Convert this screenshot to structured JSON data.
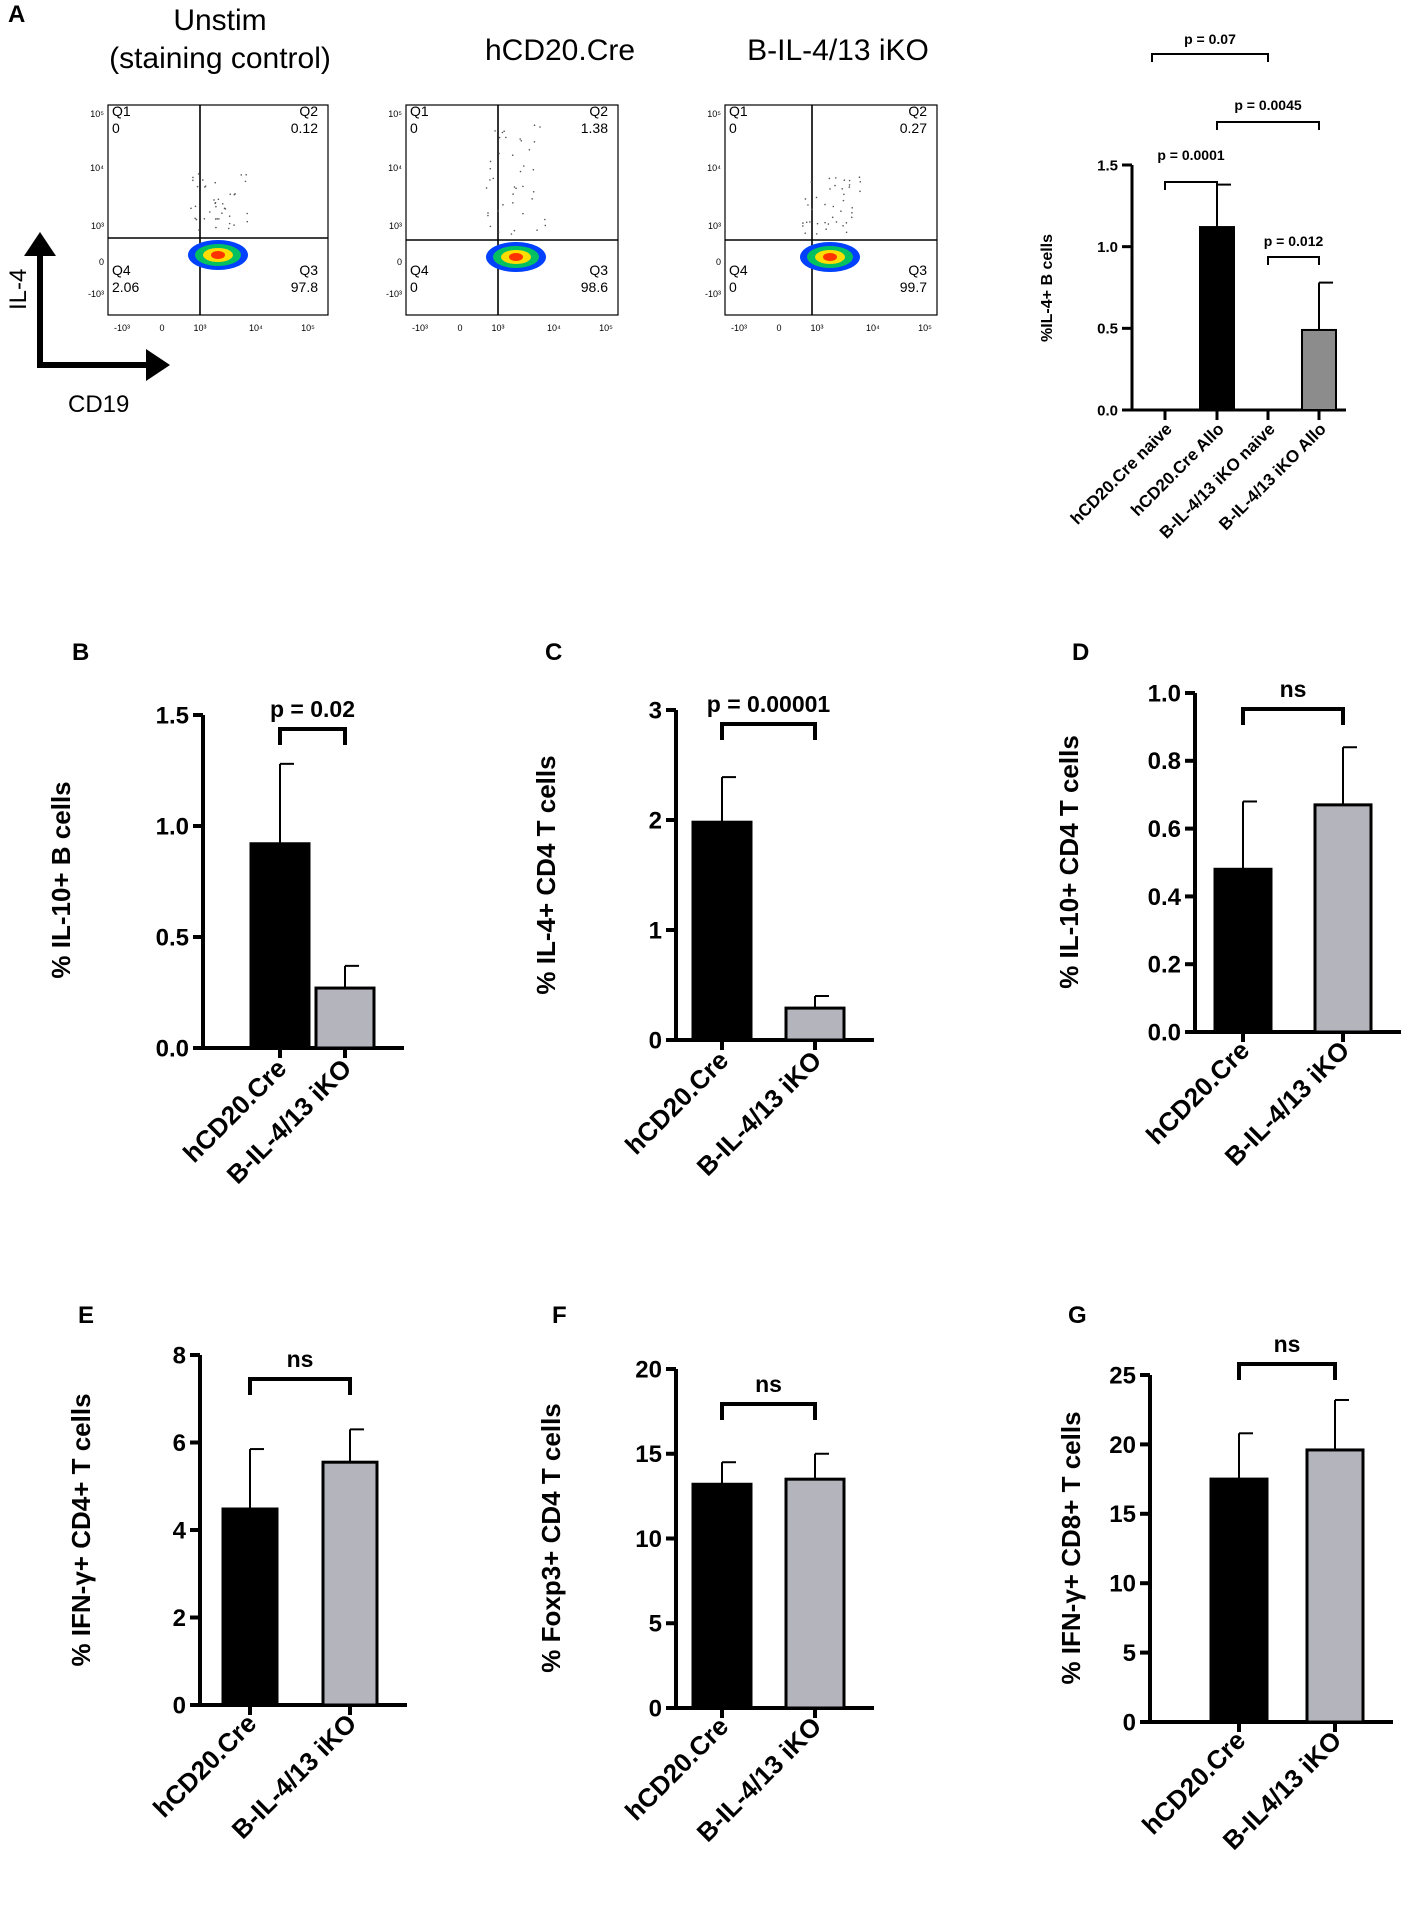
{
  "panel_letters": [
    "A",
    "B",
    "C",
    "D",
    "E",
    "F",
    "G"
  ],
  "flow_axes": {
    "x": "CD19",
    "y": "IL-4"
  },
  "flow_plots": [
    {
      "title_lines": [
        "Unstim",
        "(staining control)"
      ],
      "quadrants": {
        "q1": [
          "Q1",
          "0"
        ],
        "q2": [
          "Q2",
          "0.12"
        ],
        "q3": [
          "Q3",
          "97.8"
        ],
        "q4": [
          "Q4",
          "2.06"
        ]
      }
    },
    {
      "title_lines": [
        "hCD20.Cre"
      ],
      "quadrants": {
        "q1": [
          "Q1",
          "0"
        ],
        "q2": [
          "Q2",
          "1.38"
        ],
        "q3": [
          "Q3",
          "98.6"
        ],
        "q4": [
          "Q4",
          "0"
        ]
      }
    },
    {
      "title_lines": [
        "B-IL-4/13 iKO"
      ],
      "quadrants": {
        "q1": [
          "Q1",
          "0"
        ],
        "q2": [
          "Q2",
          "0.27"
        ],
        "q3": [
          "Q3",
          "99.7"
        ],
        "q4": [
          "Q4",
          "0"
        ]
      }
    }
  ],
  "flow_tick_labels": {
    "y": [
      "10⁵",
      "10⁴",
      "10³",
      "0",
      "-10³"
    ],
    "x": [
      "-10³",
      "0",
      "10³",
      "10⁴",
      "10⁵"
    ]
  },
  "colors": {
    "black_bar": "#000000",
    "grey_bar": "#b4b4bc",
    "grey_bar_a": "#8c8c8c",
    "scatter_hot": "#ff3300",
    "scatter_mid": "#ffdd00",
    "scatter_cool": "#00c060",
    "scatter_cold": "#0040ff"
  },
  "chart_data": [
    {
      "panel": "A",
      "type": "bar",
      "ylabel": "%IL-4+ B cells",
      "categories": [
        "hCD20.Cre naive",
        "hCD20.Cre Allo",
        "B-IL-4/13 iKO naive",
        "B-IL-4/13 iKO Allo"
      ],
      "values": [
        0,
        1.12,
        0,
        0.49
      ],
      "errors": [
        0,
        0.26,
        0,
        0.29
      ],
      "colors": [
        "black",
        "black",
        "grey",
        "grey"
      ],
      "ylim": [
        0,
        1.5
      ],
      "yticks": [
        "0.0",
        "0.5",
        "1.0",
        "1.5"
      ],
      "brackets": [
        {
          "from": 0,
          "to": 1,
          "label": "p = 0.0001"
        },
        {
          "from": 2,
          "to": 3,
          "label": "p = 0.012"
        },
        {
          "from": 1,
          "to": 3,
          "label": "p = 0.0045"
        },
        {
          "from": 0,
          "to": 2,
          "label": "p = 0.07"
        }
      ]
    },
    {
      "panel": "B",
      "type": "bar",
      "ylabel": "% IL-10+ B cells",
      "categories": [
        "hCD20.Cre",
        "B-IL-4/13 iKO"
      ],
      "values": [
        0.92,
        0.27
      ],
      "errors": [
        0.36,
        0.1
      ],
      "ylim": [
        0,
        1.5
      ],
      "yticks": [
        "0.0",
        "0.5",
        "1.0",
        "1.5"
      ],
      "bracket": "p = 0.02"
    },
    {
      "panel": "C",
      "type": "bar",
      "ylabel": "% IL-4+ CD4 T cells",
      "categories": [
        "hCD20.Cre",
        "B-IL-4/13 iKO"
      ],
      "values": [
        1.98,
        0.29
      ],
      "errors": [
        0.41,
        0.11
      ],
      "ylim": [
        0,
        3
      ],
      "yticks": [
        "0",
        "1",
        "2",
        "3"
      ],
      "bracket": "p = 0.00001"
    },
    {
      "panel": "D",
      "type": "bar",
      "ylabel": "% IL-10+ CD4 T cells",
      "categories": [
        "hCD20.Cre",
        "B-IL-4/13 iKO"
      ],
      "values": [
        0.48,
        0.67
      ],
      "errors": [
        0.2,
        0.17
      ],
      "ylim": [
        0,
        1.0
      ],
      "yticks": [
        "0.0",
        "0.2",
        "0.4",
        "0.6",
        "0.8",
        "1.0"
      ],
      "bracket": "ns"
    },
    {
      "panel": "E",
      "type": "bar",
      "ylabel": "% IFN-γ+ CD4+ T cells",
      "categories": [
        "hCD20.Cre",
        "B-IL-4/13 iKO"
      ],
      "values": [
        4.48,
        5.55
      ],
      "errors": [
        1.37,
        0.75
      ],
      "ylim": [
        0,
        8
      ],
      "yticks": [
        "0",
        "2",
        "4",
        "6",
        "8"
      ],
      "bracket": "ns"
    },
    {
      "panel": "F",
      "type": "bar",
      "ylabel": "% Foxp3+ CD4 T cells",
      "categories": [
        "hCD20.Cre",
        "B-IL-4/13 iKO"
      ],
      "values": [
        13.2,
        13.5
      ],
      "errors": [
        1.3,
        1.5
      ],
      "ylim": [
        0,
        20
      ],
      "yticks": [
        "0",
        "5",
        "10",
        "15",
        "20"
      ],
      "bracket": "ns"
    },
    {
      "panel": "G",
      "type": "bar",
      "ylabel": "% IFN-γ+ CD8+ T cells",
      "categories": [
        "hCD20.Cre",
        "B-IL4/13 iKO"
      ],
      "values": [
        17.5,
        19.6
      ],
      "errors": [
        3.3,
        3.6
      ],
      "ylim": [
        0,
        25
      ],
      "yticks": [
        "0",
        "5",
        "10",
        "15",
        "20",
        "25"
      ],
      "bracket": "ns"
    }
  ]
}
